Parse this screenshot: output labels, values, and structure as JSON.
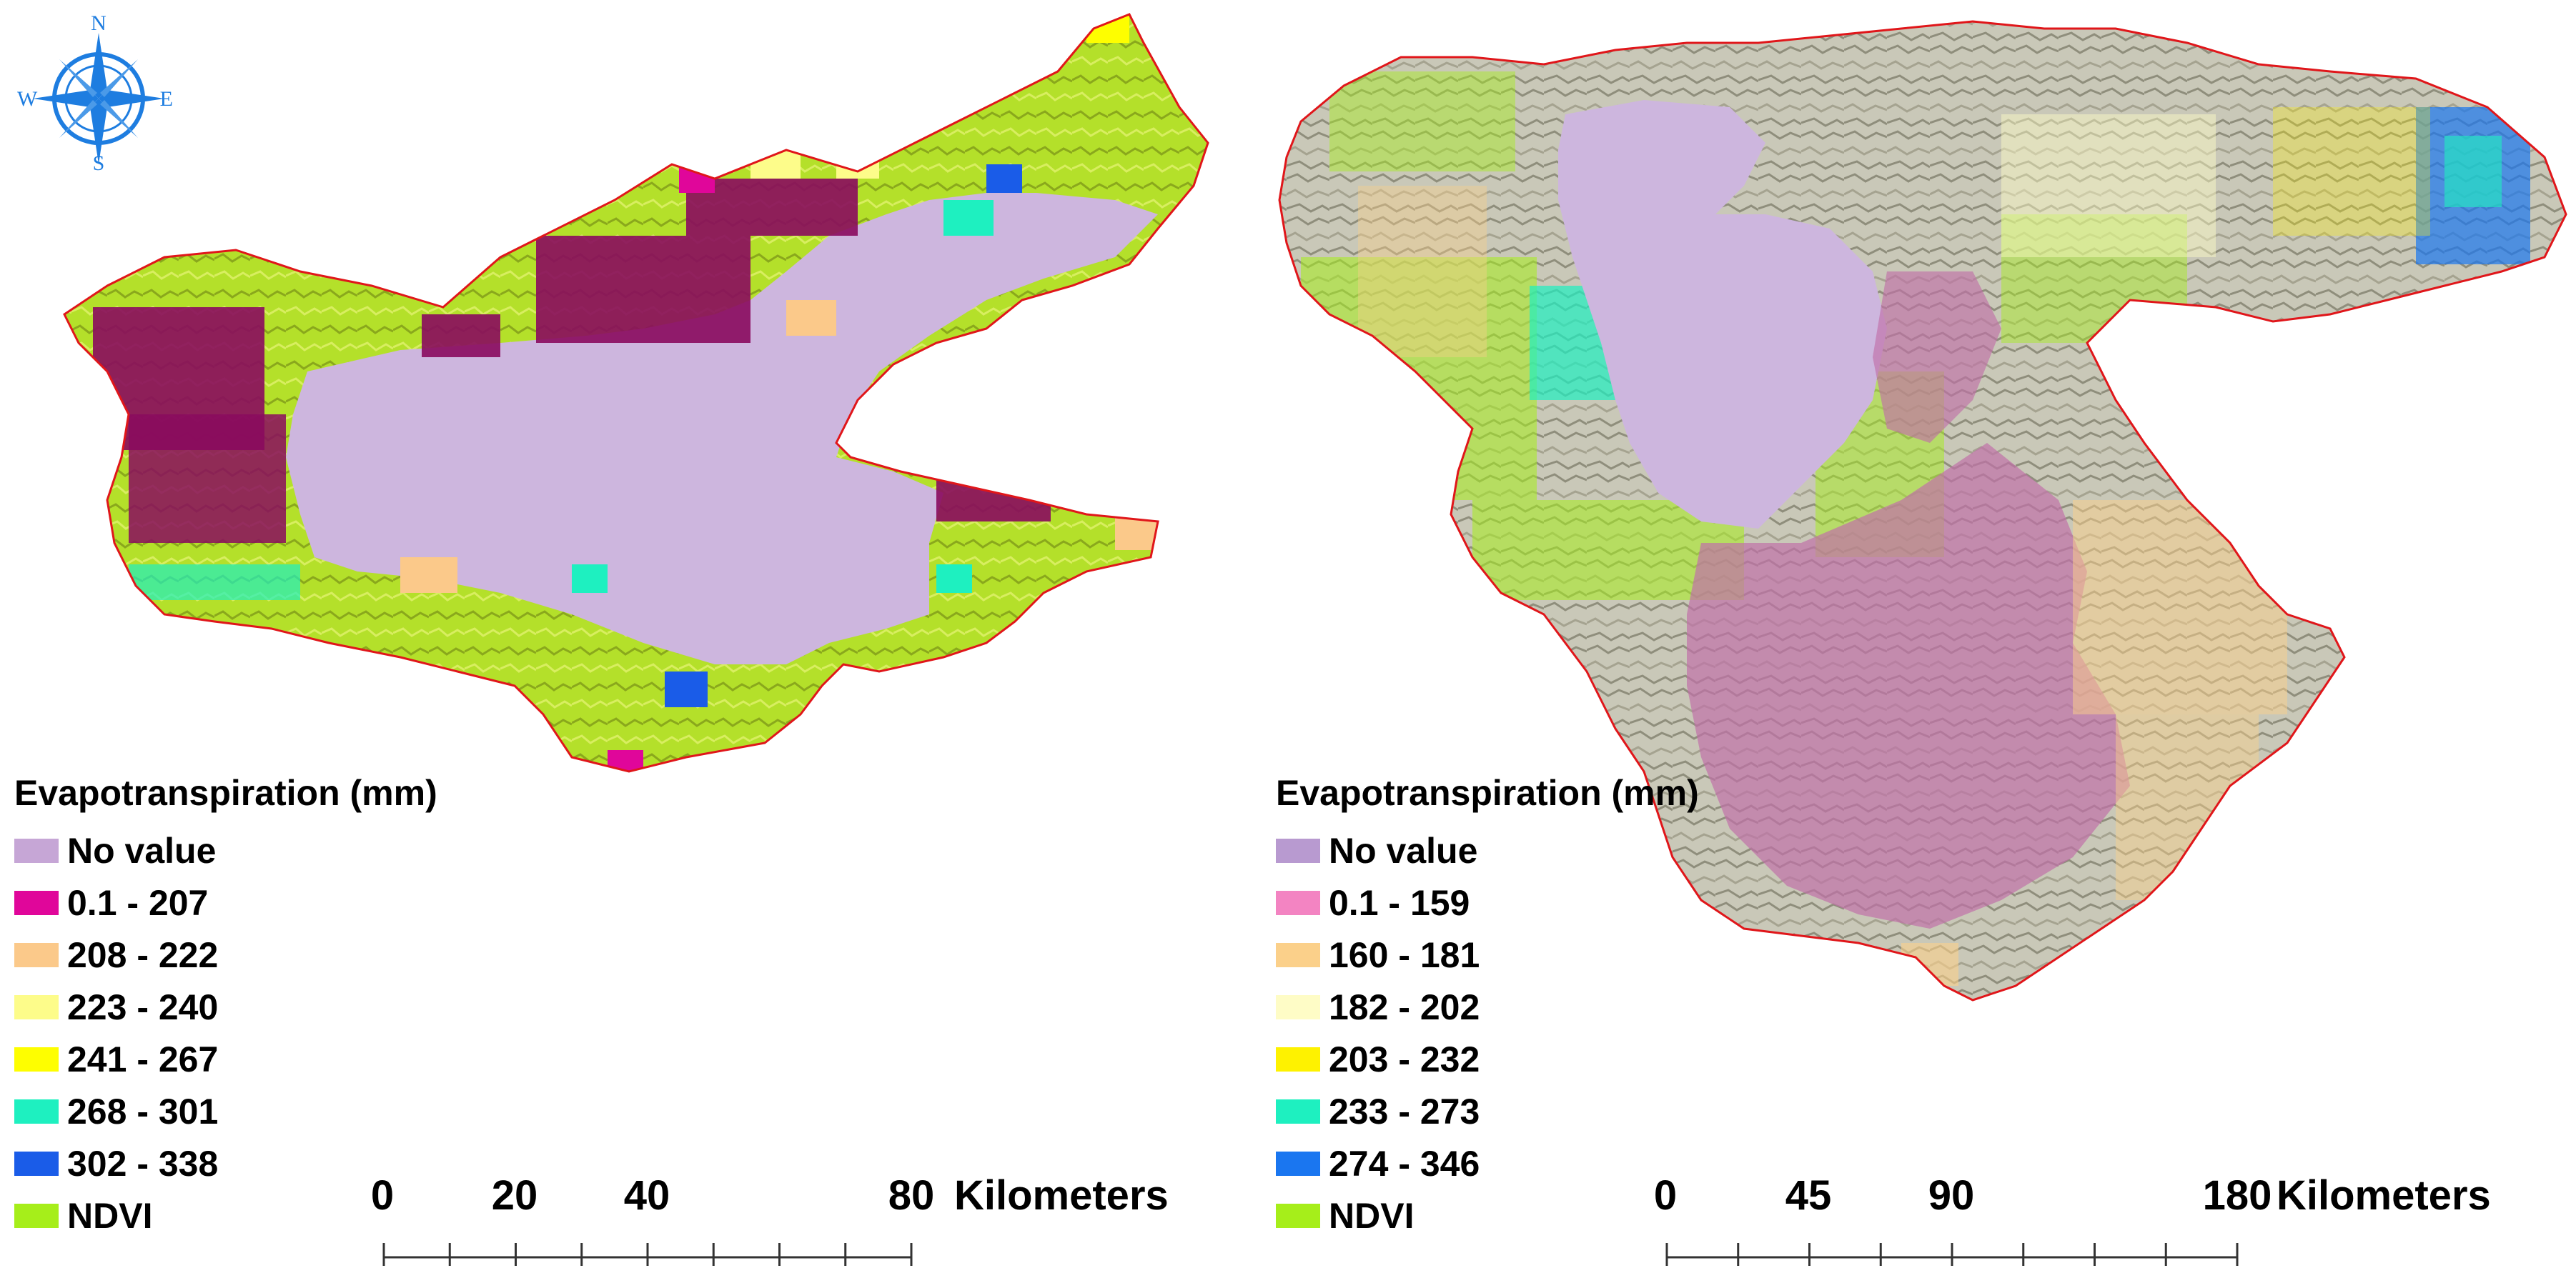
{
  "colors": {
    "no_value_map": "#cdb6de",
    "boundary": "#e0161a",
    "terrain_light": "#cfcfc4",
    "terrain_dark": "#9a9a8a",
    "compass_blue": "#1e7de0"
  },
  "compass": {
    "icon": "compass-rose-icon",
    "north": "N",
    "south": "S",
    "east": "E",
    "west": "W"
  },
  "left_map": {
    "legend": {
      "title": "Evapotranspiration (mm)",
      "items": [
        {
          "label": "No value",
          "color": "#c6a6d6"
        },
        {
          "label": "0.1 - 207",
          "color": "#e0069a"
        },
        {
          "label": "208 - 222",
          "color": "#fbc98a"
        },
        {
          "label": "223 - 240",
          "color": "#fdfc8a"
        },
        {
          "label": "241 - 267",
          "color": "#fefe00"
        },
        {
          "label": "268 - 301",
          "color": "#1ef0c0"
        },
        {
          "label": "302 - 338",
          "color": "#1a5ce8"
        },
        {
          "label": "NDVI",
          "color": "#a6ee1a"
        }
      ]
    },
    "scale": {
      "ticks": [
        "0",
        "20",
        "40",
        "80"
      ],
      "unit": "Kilometers"
    }
  },
  "right_map": {
    "legend": {
      "title": "Evapotranspiration (mm)",
      "items": [
        {
          "label": "No value",
          "color": "#b89ad0"
        },
        {
          "label": "0.1 - 159",
          "color": "#f384c2"
        },
        {
          "label": "160 - 181",
          "color": "#fbd08a"
        },
        {
          "label": "182 - 202",
          "color": "#fefcc6"
        },
        {
          "label": "203 - 232",
          "color": "#fef200"
        },
        {
          "label": "233 - 273",
          "color": "#1ef0c0"
        },
        {
          "label": "274 - 346",
          "color": "#1a76f0"
        },
        {
          "label": "NDVI",
          "color": "#a6ee1a"
        }
      ]
    },
    "scale": {
      "ticks": [
        "0",
        "45",
        "90",
        "180"
      ],
      "unit": "Kilometers"
    }
  }
}
